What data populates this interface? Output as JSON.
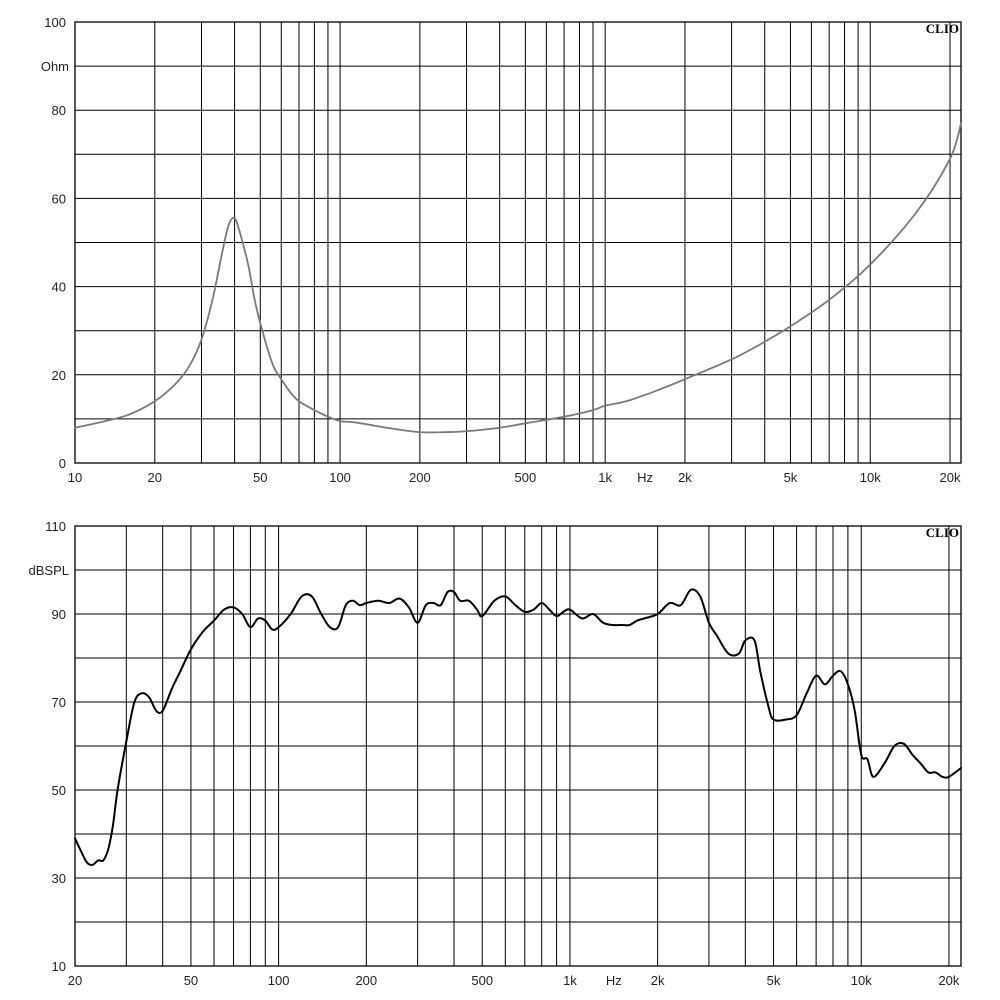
{
  "chart_data": [
    {
      "type": "line",
      "brand": "CLIO",
      "ylabel": "Ohm",
      "xunit": "Hz",
      "xscale": "log",
      "xlim": [
        10,
        22000
      ],
      "ylim": [
        0,
        100
      ],
      "grid": true,
      "x_tick_labels": [
        {
          "value": 10,
          "label": "10"
        },
        {
          "value": 20,
          "label": "20"
        },
        {
          "value": 50,
          "label": "50"
        },
        {
          "value": 100,
          "label": "100"
        },
        {
          "value": 200,
          "label": "200"
        },
        {
          "value": 500,
          "label": "500"
        },
        {
          "value": 1000,
          "label": "1k"
        },
        {
          "value": 2000,
          "label": "2k"
        },
        {
          "value": 5000,
          "label": "5k"
        },
        {
          "value": 10000,
          "label": "10k"
        },
        {
          "value": 20000,
          "label": "20k"
        }
      ],
      "y_tick_labels": [
        {
          "value": 0,
          "label": "0"
        },
        {
          "value": 20,
          "label": "20"
        },
        {
          "value": 40,
          "label": "40"
        },
        {
          "value": 60,
          "label": "60"
        },
        {
          "value": 80,
          "label": "80"
        },
        {
          "value": 100,
          "label": "100"
        }
      ],
      "series": [
        {
          "color": "#7a7a7a",
          "x": [
            10,
            13,
            16,
            20,
            24,
            27,
            30,
            33,
            36,
            38,
            40,
            42,
            45,
            48,
            52,
            56,
            60,
            65,
            70,
            80,
            90,
            100,
            110,
            120,
            150,
            200,
            250,
            300,
            400,
            500,
            700,
            900,
            1000,
            1200,
            1500,
            2000,
            3000,
            4000,
            5000,
            7000,
            10000,
            15000,
            20000,
            22000
          ],
          "y": [
            8,
            9.5,
            11,
            14,
            18,
            22,
            28,
            37,
            48,
            54,
            55.5,
            52,
            45,
            36,
            28,
            22,
            19,
            16,
            14,
            12,
            10.5,
            9.5,
            9.3,
            9,
            8,
            7,
            7,
            7.2,
            8,
            9,
            10.5,
            12,
            13,
            14,
            16,
            19,
            23.5,
            27.5,
            31,
            37,
            45,
            57,
            69,
            77
          ]
        }
      ]
    },
    {
      "type": "line",
      "brand": "CLIO",
      "ylabel": "dBSPL",
      "xunit": "Hz",
      "xscale": "log",
      "xlim": [
        20,
        22000
      ],
      "ylim": [
        10,
        110
      ],
      "grid": true,
      "x_tick_labels": [
        {
          "value": 20,
          "label": "20"
        },
        {
          "value": 50,
          "label": "50"
        },
        {
          "value": 100,
          "label": "100"
        },
        {
          "value": 200,
          "label": "200"
        },
        {
          "value": 500,
          "label": "500"
        },
        {
          "value": 1000,
          "label": "1k"
        },
        {
          "value": 2000,
          "label": "2k"
        },
        {
          "value": 5000,
          "label": "5k"
        },
        {
          "value": 10000,
          "label": "10k"
        },
        {
          "value": 20000,
          "label": "20k"
        }
      ],
      "y_tick_labels": [
        {
          "value": 10,
          "label": "10"
        },
        {
          "value": 30,
          "label": "30"
        },
        {
          "value": 50,
          "label": "50"
        },
        {
          "value": 70,
          "label": "70"
        },
        {
          "value": 90,
          "label": "90"
        },
        {
          "value": 110,
          "label": "110"
        }
      ],
      "series": [
        {
          "color": "#000000",
          "x": [
            20,
            21,
            22,
            23,
            24,
            25,
            26,
            27,
            28,
            30,
            32,
            34,
            36,
            38,
            40,
            43,
            46,
            50,
            55,
            60,
            65,
            70,
            75,
            80,
            85,
            90,
            95,
            100,
            110,
            120,
            130,
            140,
            150,
            160,
            170,
            180,
            190,
            200,
            220,
            240,
            260,
            280,
            300,
            320,
            340,
            360,
            380,
            400,
            420,
            450,
            480,
            500,
            550,
            600,
            650,
            700,
            750,
            800,
            850,
            900,
            950,
            1000,
            1100,
            1200,
            1300,
            1400,
            1500,
            1600,
            1700,
            1800,
            2000,
            2200,
            2400,
            2600,
            2800,
            3000,
            3200,
            3500,
            3800,
            4000,
            4300,
            4500,
            4800,
            5000,
            5500,
            6000,
            6500,
            7000,
            7500,
            8000,
            8500,
            9000,
            9500,
            10000,
            10500,
            11000,
            12000,
            13000,
            14000,
            15000,
            16000,
            17000,
            18000,
            19000,
            20000,
            22000
          ],
          "y": [
            39,
            36,
            33.5,
            33,
            34,
            34,
            36.5,
            42,
            50,
            61,
            70,
            72,
            71,
            68,
            68,
            73,
            77,
            82,
            86,
            88.5,
            91,
            91.5,
            90,
            87,
            89,
            88.5,
            86.5,
            87,
            90,
            94,
            94,
            90,
            87,
            87,
            92,
            93,
            92,
            92.5,
            93,
            92.5,
            93.5,
            91.5,
            88,
            92,
            92.5,
            92,
            95,
            95,
            93,
            93,
            91,
            89.5,
            93,
            94,
            92,
            90.5,
            91,
            92.5,
            91,
            89.5,
            90.5,
            91,
            89,
            90,
            88,
            87.5,
            87.5,
            87.5,
            88.5,
            89,
            90,
            92.5,
            92,
            95.5,
            94,
            88,
            85,
            81,
            81,
            84,
            84,
            77,
            69,
            66,
            66,
            67,
            72,
            76,
            74,
            76,
            77,
            74,
            68,
            58,
            57,
            53,
            56,
            60,
            60.5,
            58,
            56,
            54,
            54,
            53,
            53,
            55
          ]
        }
      ]
    }
  ]
}
